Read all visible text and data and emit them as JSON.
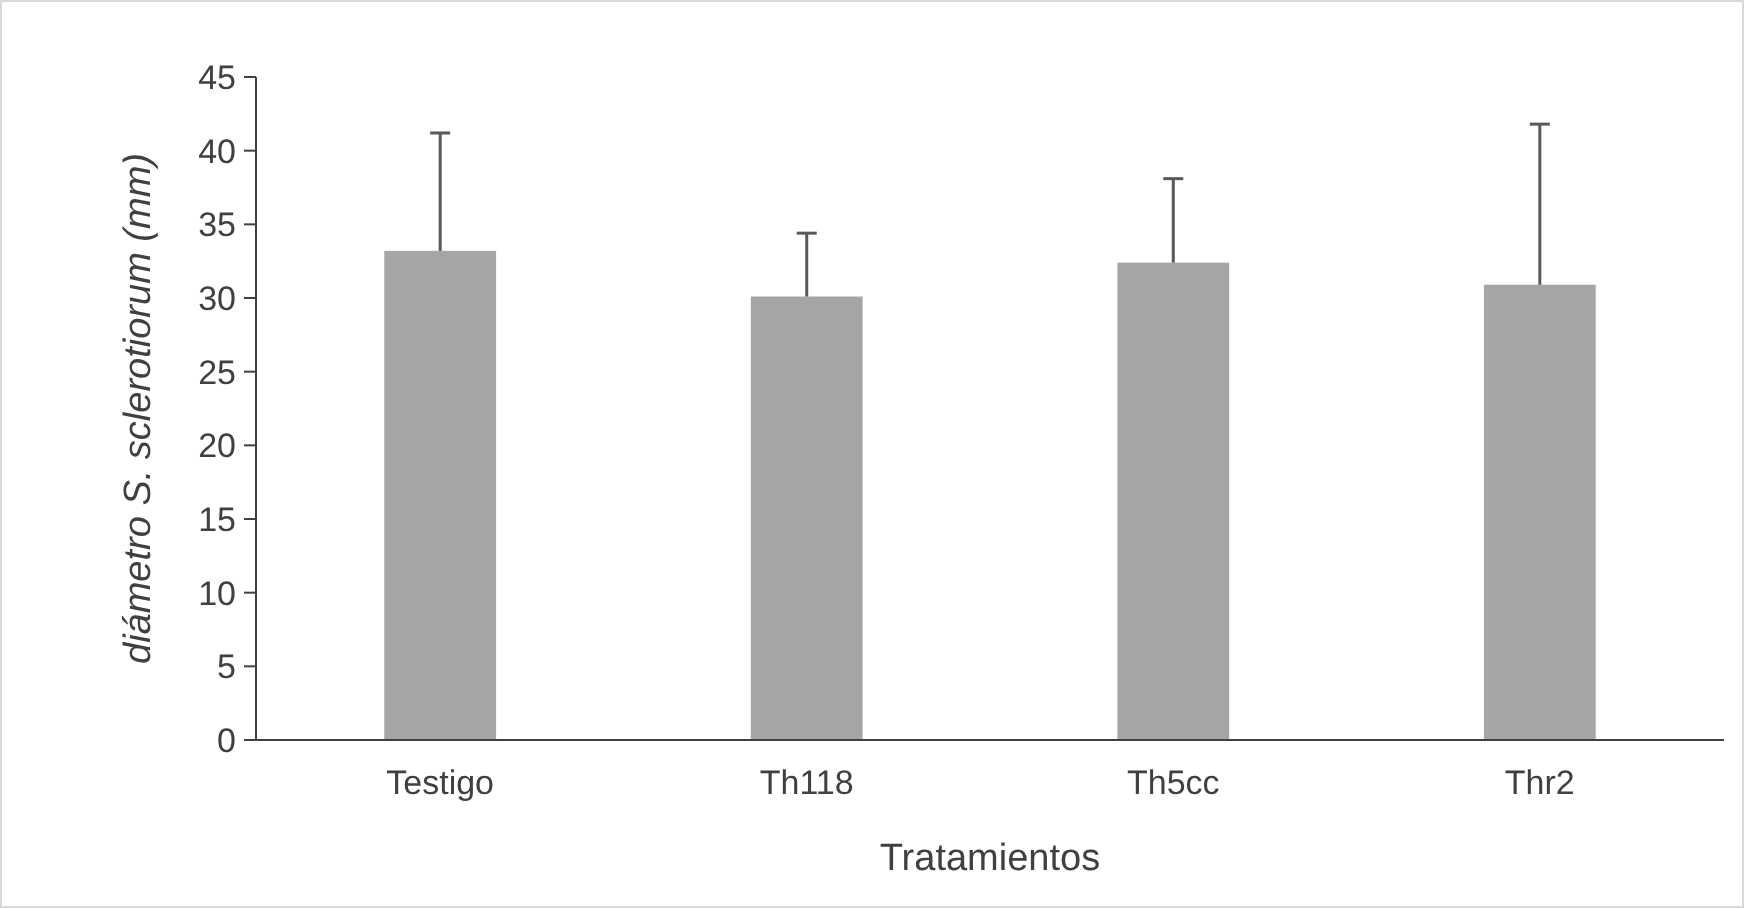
{
  "chart_data": {
    "type": "bar",
    "xlabel": "Tratamientos",
    "ylabel": "diámetro S. sclerotiorum (mm)",
    "categories": [
      "Testigo",
      "Th118",
      "Th5cc",
      "Thr2"
    ],
    "values": [
      33.2,
      30.1,
      32.4,
      30.9
    ],
    "errors": [
      [
        33.2,
        41.2
      ],
      [
        30.1,
        34.4
      ],
      [
        32.4,
        38.1
      ],
      [
        30.9,
        41.8
      ]
    ],
    "color": "#a5a5a5",
    "ylim": [
      0,
      45
    ],
    "yticks": [
      0,
      5,
      10,
      15,
      20,
      25,
      30,
      35,
      40,
      45
    ],
    "grid": false
  }
}
